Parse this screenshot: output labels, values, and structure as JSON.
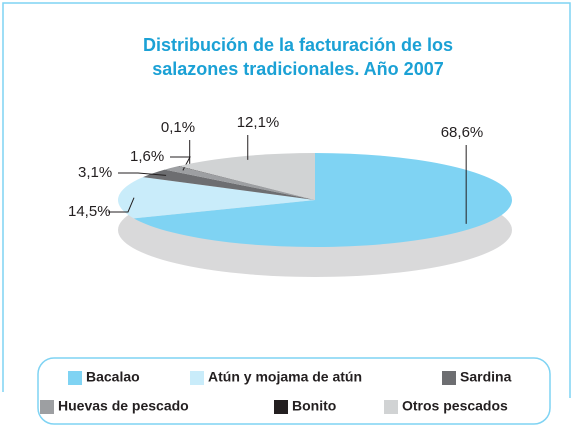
{
  "chart_data": {
    "type": "pie",
    "title": [
      "Distribución de la facturación de los",
      "salazones tradicionales. Año 2007"
    ],
    "categories": [
      "Bacalao",
      "Atún y mojama de atún",
      "Sardina",
      "Huevas de pescado",
      "Bonito",
      "Otros pescados"
    ],
    "values": [
      68.6,
      14.5,
      3.1,
      1.6,
      0.1,
      12.1
    ],
    "value_labels": [
      "68,6%",
      "14,5%",
      "3,1%",
      "1,6%",
      "0,1%",
      "12,1%"
    ],
    "colors": [
      "#7fd3f3",
      "#c9ecfa",
      "#6d6e71",
      "#9d9fa2",
      "#231f20",
      "#d1d3d4"
    ]
  }
}
